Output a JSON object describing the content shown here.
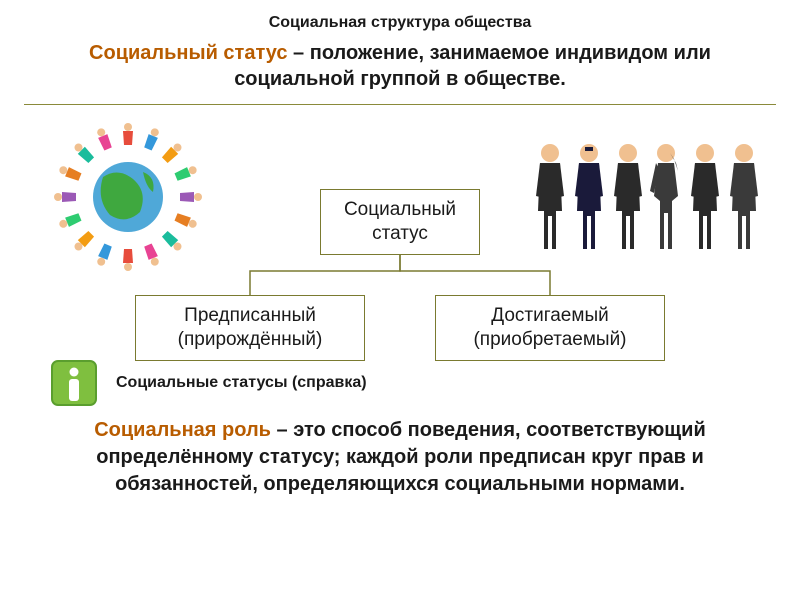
{
  "title": "Социальная структура общества",
  "subtitle": {
    "highlight": "Социальный статус",
    "rest": " – положение, занимаемое индивидом или социальной группой в обществе."
  },
  "diagram": {
    "center": "Социальный статус",
    "left": "Предписанный (прирождённый)",
    "right": "Достигаемый (приобретаемый)",
    "connector_color": "#7a7a30",
    "box_border_color": "#7a7a30"
  },
  "info_label": "Социальные статусы (справка)",
  "role": {
    "highlight": "Социальная роль",
    "rest": " – это способ поведения, соответствующий определённому статусу; каждой роли предписан круг прав и обязанностей, определяющихся социальными нормами."
  },
  "colors": {
    "highlight": "#b85c00",
    "text": "#1a1a1a",
    "divider": "#8a8a3a",
    "info_bg": "#7fbf3f",
    "info_border": "#5a9e2e",
    "globe_water": "#4fa8d8",
    "globe_land": "#3fa83f",
    "suit_dark": "#2a2a2a",
    "skin": "#f0c090"
  },
  "circle_people_count": 16,
  "line_people_count": 6
}
